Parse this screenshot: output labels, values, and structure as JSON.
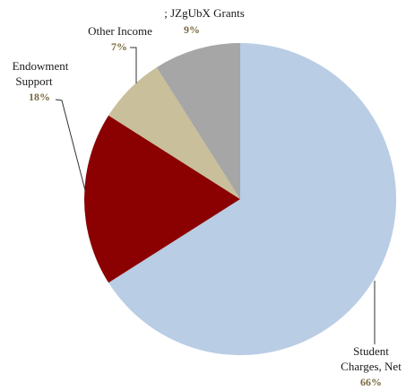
{
  "chart_data": {
    "type": "pie",
    "title": "",
    "start": "top, clockwise",
    "slices": [
      {
        "label_lines": [
          "Student",
          "Charges, Net"
        ],
        "label": "Student Charges, Net",
        "value": 66,
        "pct_text": "66%",
        "color": "#b9cde5"
      },
      {
        "label_lines": [
          "Endowment",
          "Support"
        ],
        "label": "Endowment Support",
        "value": 18,
        "pct_text": "18%",
        "color": "#8b0000"
      },
      {
        "label_lines": [
          "Other Income"
        ],
        "label": "Other Income",
        "value": 7,
        "pct_text": "7%",
        "color": "#c9bf9b"
      },
      {
        "label_lines": [
          ";  JZgUbX Grants"
        ],
        "label": ";  JZgUbX Grants",
        "value": 9,
        "pct_text": "9%",
        "color": "#a6a6a6"
      }
    ]
  }
}
